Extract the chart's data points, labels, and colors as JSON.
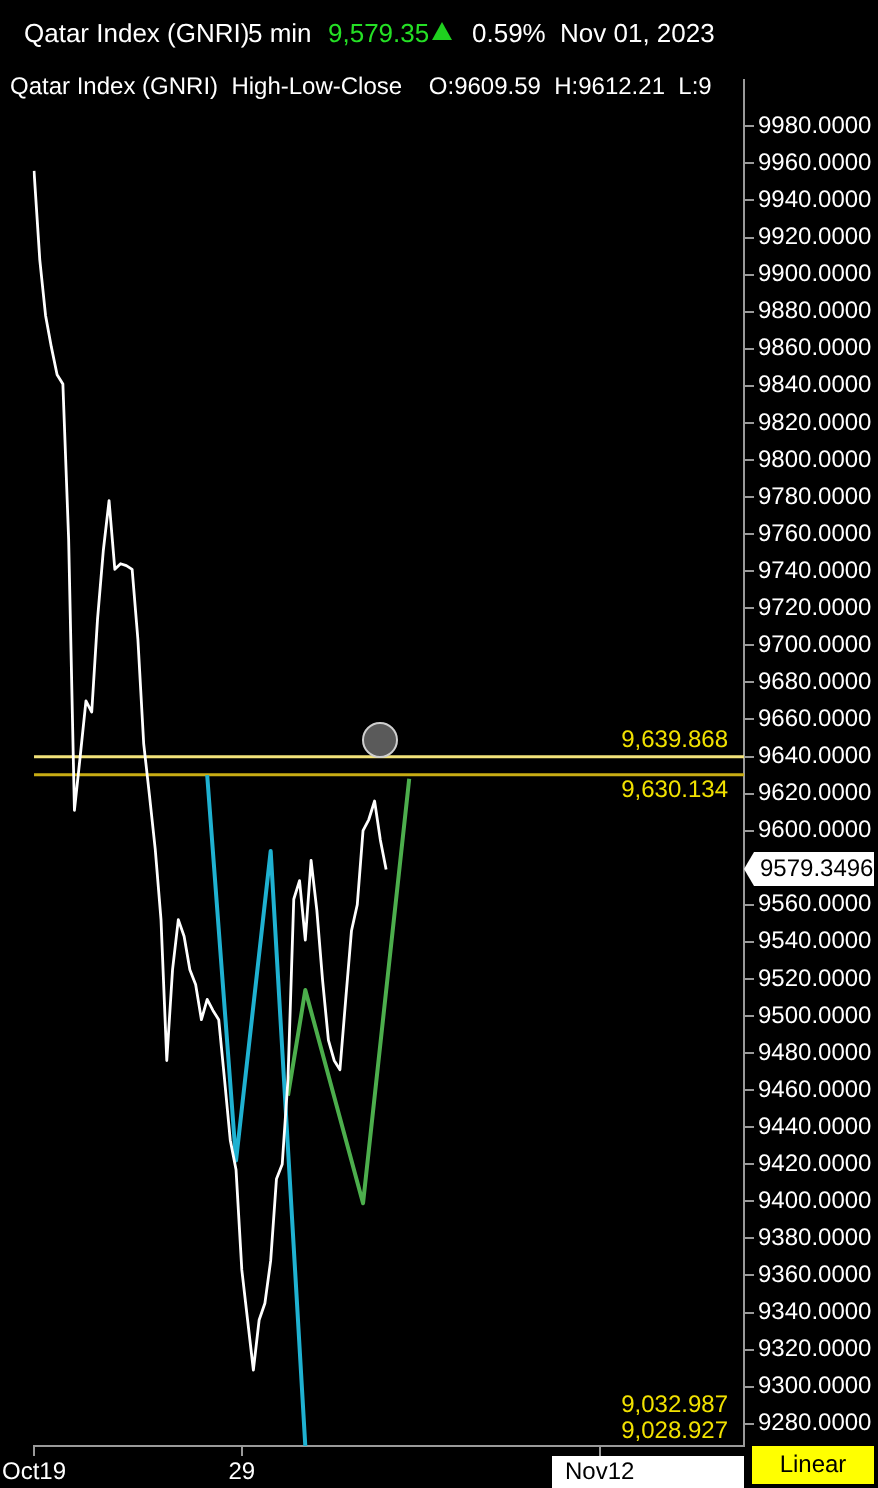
{
  "chart_data": {
    "type": "line",
    "title": "Qatar Index (GNRI)",
    "subtitle": "Qatar Index (GNRI)  High-Low-Close    O:9609.59  H:9612.21  L:9",
    "annotations": [
      "5 min",
      "9,579.35",
      "0.59%",
      "Nov 01, 2023",
      "9579.3496",
      "9,032.987",
      "9,028.927",
      "Linear"
    ],
    "categories": [
      "Oct19",
      null,
      null,
      null,
      null,
      null,
      null,
      null,
      null,
      null,
      null,
      null,
      null,
      null,
      null,
      null,
      null,
      null,
      null,
      null,
      null,
      null,
      null,
      null,
      null,
      null,
      null,
      null,
      null,
      null,
      null,
      null,
      null,
      null,
      null,
      null,
      "29",
      null,
      null,
      null,
      null,
      null,
      null,
      null,
      null,
      null,
      null,
      null,
      null,
      null,
      null,
      null,
      null,
      null,
      null,
      null,
      null,
      null,
      null,
      null,
      null,
      null,
      null,
      null,
      null,
      null,
      null,
      null,
      null,
      null,
      null,
      null,
      null,
      null,
      null,
      null,
      null,
      null,
      null,
      null,
      null,
      null,
      null,
      null,
      null,
      null,
      null,
      null,
      null,
      null,
      null,
      null,
      null,
      null,
      null,
      null,
      null,
      null,
      "Nov12",
      null,
      null,
      null,
      null,
      null,
      null,
      null,
      null,
      null,
      null,
      null,
      null,
      null,
      null,
      null,
      null,
      null,
      null,
      null,
      null,
      null,
      null,
      null,
      null,
      null
    ],
    "series": [
      {
        "color": "#ffffff",
        "values": [
          9956,
          9908,
          9878,
          9861,
          9846,
          9841,
          9757,
          9611,
          9640,
          9670,
          9664,
          9714,
          9751,
          9778,
          9741,
          9744,
          9743,
          9741,
          9703,
          9647,
          9619,
          9590,
          9552,
          9476,
          9525,
          9552,
          9543,
          9525,
          9517,
          9498,
          9509,
          9503,
          9498,
          9466,
          9433,
          9417,
          9363,
          9336,
          9309,
          9336,
          9345,
          9368,
          9412,
          9420,
          9466,
          9563,
          9573,
          9541,
          9584,
          9557,
          9519,
          9487,
          9476,
          9471,
          9509,
          9546,
          9560,
          9600,
          9606,
          9616,
          9595,
          9579,
          null,
          null,
          null,
          null,
          null,
          null,
          null,
          null,
          null,
          null,
          null,
          null,
          null,
          null,
          null,
          null,
          null,
          null,
          null,
          null,
          null,
          null,
          null,
          null,
          null,
          null,
          null,
          null,
          null,
          null,
          null,
          null,
          null,
          null,
          null,
          null,
          null,
          null,
          null,
          null,
          null,
          null,
          null,
          null,
          null,
          null,
          null,
          null,
          null,
          null,
          null,
          null,
          null,
          null,
          null,
          null,
          null,
          null,
          null,
          null,
          null,
          null
        ]
      },
      {
        "color": "#1fb1d1",
        "values": [
          null,
          null,
          null,
          null,
          null,
          null,
          null,
          null,
          null,
          null,
          null,
          null,
          null,
          null,
          null,
          null,
          null,
          null,
          null,
          null,
          null,
          null,
          null,
          null,
          null,
          null,
          null,
          null,
          null,
          null,
          9630,
          null,
          null,
          null,
          null,
          9422,
          null,
          null,
          null,
          null,
          null,
          9589,
          null,
          null,
          null,
          null,
          null,
          9268,
          null,
          null,
          null,
          null,
          null,
          null,
          null,
          null,
          null,
          null,
          null,
          null,
          null,
          null,
          null,
          null,
          null,
          null,
          null,
          null,
          null,
          null,
          null,
          null,
          null,
          null,
          null,
          null,
          null,
          null,
          null,
          null,
          null,
          null,
          null,
          null,
          null,
          null,
          null,
          null,
          null,
          null,
          null,
          null,
          null,
          null,
          null,
          null,
          null,
          null,
          null,
          null,
          null,
          null,
          null,
          null,
          null,
          null,
          null,
          null,
          null,
          null,
          null,
          null,
          null,
          null,
          null,
          null,
          null,
          null,
          null,
          null,
          null,
          null,
          null,
          null
        ]
      },
      {
        "color": "#4cae4c",
        "values": [
          null,
          null,
          null,
          null,
          null,
          null,
          null,
          null,
          null,
          null,
          null,
          null,
          null,
          null,
          null,
          null,
          null,
          null,
          null,
          null,
          null,
          null,
          null,
          null,
          null,
          null,
          null,
          null,
          null,
          null,
          null,
          null,
          null,
          null,
          null,
          null,
          null,
          null,
          null,
          null,
          null,
          null,
          null,
          null,
          9457,
          null,
          null,
          9514,
          null,
          null,
          null,
          null,
          null,
          null,
          null,
          null,
          null,
          9399,
          null,
          null,
          null,
          null,
          null,
          null,
          null,
          9628,
          null,
          null,
          null,
          null,
          null,
          null,
          null,
          null,
          null,
          null,
          null,
          null,
          null,
          null,
          null,
          null,
          null,
          null,
          null,
          null,
          null,
          null,
          null,
          null,
          null,
          null,
          null,
          null,
          null,
          null,
          null,
          null,
          null,
          null,
          null,
          null,
          null,
          null,
          null,
          null,
          null,
          null,
          null,
          null,
          null,
          null,
          null,
          null,
          null,
          null,
          null,
          null,
          null,
          null,
          null,
          null,
          null,
          null
        ]
      }
    ],
    "ylim": [
      9268,
      10005
    ],
    "yticks": [
      {
        "value": 9280,
        "label": "9280.0000"
      },
      {
        "value": 9300,
        "label": "9300.0000"
      },
      {
        "value": 9320,
        "label": "9320.0000"
      },
      {
        "value": 9340,
        "label": "9340.0000"
      },
      {
        "value": 9360,
        "label": "9360.0000"
      },
      {
        "value": 9380,
        "label": "9380.0000"
      },
      {
        "value": 9400,
        "label": "9400.0000"
      },
      {
        "value": 9420,
        "label": "9420.0000"
      },
      {
        "value": 9440,
        "label": "9440.0000"
      },
      {
        "value": 9460,
        "label": "9460.0000"
      },
      {
        "value": 9480,
        "label": "9480.0000"
      },
      {
        "value": 9500,
        "label": "9500.0000"
      },
      {
        "value": 9520,
        "label": "9520.0000"
      },
      {
        "value": 9540,
        "label": "9540.0000"
      },
      {
        "value": 9560,
        "label": "9560.0000"
      },
      {
        "value": 9600,
        "label": "9600.0000"
      },
      {
        "value": 9620,
        "label": "9620.0000"
      },
      {
        "value": 9640,
        "label": "9640.0000"
      },
      {
        "value": 9660,
        "label": "9660.0000"
      },
      {
        "value": 9680,
        "label": "9680.0000"
      },
      {
        "value": 9700,
        "label": "9700.0000"
      },
      {
        "value": 9720,
        "label": "9720.0000"
      },
      {
        "value": 9740,
        "label": "9740.0000"
      },
      {
        "value": 9760,
        "label": "9760.0000"
      },
      {
        "value": 9780,
        "label": "9780.0000"
      },
      {
        "value": 9800,
        "label": "9800.0000"
      },
      {
        "value": 9820,
        "label": "9820.0000"
      },
      {
        "value": 9840,
        "label": "9840.0000"
      },
      {
        "value": 9860,
        "label": "9860.0000"
      },
      {
        "value": 9880,
        "label": "9880.0000"
      },
      {
        "value": 9900,
        "label": "9900.0000"
      },
      {
        "value": 9920,
        "label": "9920.0000"
      },
      {
        "value": 9940,
        "label": "9940.0000"
      },
      {
        "value": 9960,
        "label": "9960.0000"
      },
      {
        "value": 9980,
        "label": "9980.0000"
      }
    ],
    "ref_lines": [
      {
        "axis": "y",
        "value": 9639.868,
        "label": "9,639.868",
        "color": "#f2e27a"
      },
      {
        "axis": "y",
        "value": 9630.134,
        "label": "9,630.134",
        "color": "#c8ac14"
      }
    ],
    "grid": false,
    "legend": false,
    "marker": "none",
    "line_style": "solid"
  }
}
